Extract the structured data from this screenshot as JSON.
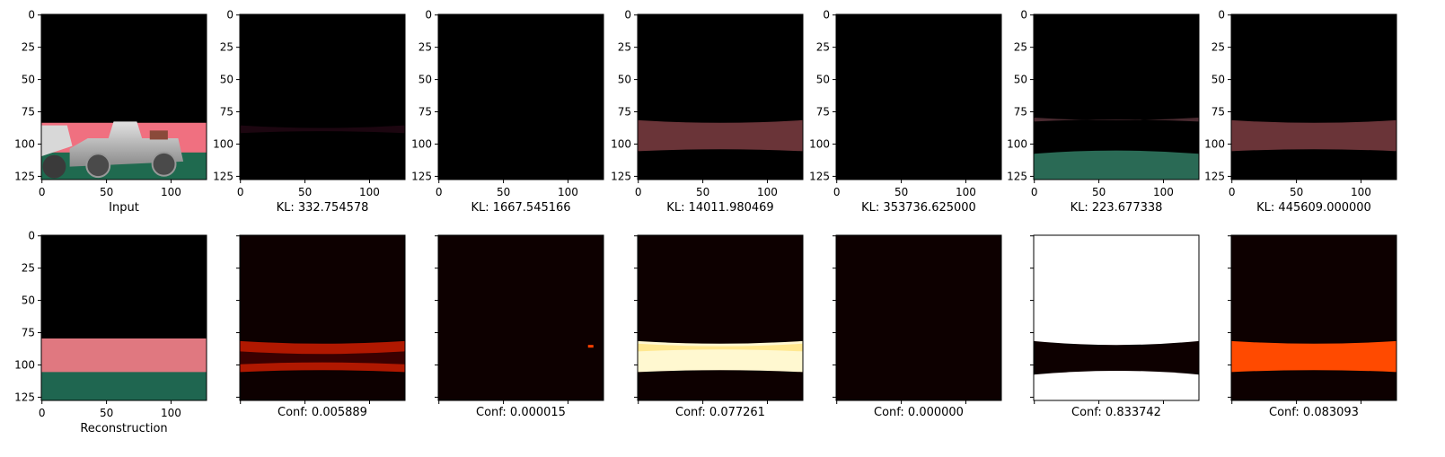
{
  "figure": {
    "x_ticks": [
      "0",
      "50",
      "100"
    ],
    "y_ticks": [
      "0",
      "25",
      "50",
      "75",
      "100",
      "125"
    ]
  },
  "chart_data": [
    {
      "type": "image",
      "row": 1,
      "col": 1,
      "caption": "Input",
      "content": "car-scene",
      "xlim": [
        0,
        128
      ],
      "ylim": [
        128,
        0
      ],
      "show_y_labels": true,
      "show_x_labels": true
    },
    {
      "type": "image",
      "row": 1,
      "col": 2,
      "caption": "KL: 332.754578",
      "content": "faint-band",
      "xlim": [
        0,
        128
      ],
      "ylim": [
        128,
        0
      ],
      "show_y_labels": true,
      "show_x_labels": true
    },
    {
      "type": "image",
      "row": 1,
      "col": 3,
      "caption": "KL: 1667.545166",
      "content": "black",
      "xlim": [
        0,
        128
      ],
      "ylim": [
        128,
        0
      ],
      "show_y_labels": true,
      "show_x_labels": true
    },
    {
      "type": "image",
      "row": 1,
      "col": 4,
      "caption": "KL: 14011.980469",
      "content": "road-band",
      "xlim": [
        0,
        128
      ],
      "ylim": [
        128,
        0
      ],
      "show_y_labels": true,
      "show_x_labels": true
    },
    {
      "type": "image",
      "row": 1,
      "col": 5,
      "caption": "KL: 353736.625000",
      "content": "black",
      "xlim": [
        0,
        128
      ],
      "ylim": [
        128,
        0
      ],
      "show_y_labels": true,
      "show_x_labels": true
    },
    {
      "type": "image",
      "row": 1,
      "col": 6,
      "caption": "KL: 223.677338",
      "content": "lane-green",
      "xlim": [
        0,
        128
      ],
      "ylim": [
        128,
        0
      ],
      "show_y_labels": true,
      "show_x_labels": true
    },
    {
      "type": "image",
      "row": 1,
      "col": 7,
      "caption": "KL: 445609.000000",
      "content": "road-band",
      "xlim": [
        0,
        128
      ],
      "ylim": [
        128,
        0
      ],
      "show_y_labels": true,
      "show_x_labels": true
    },
    {
      "type": "image",
      "row": 2,
      "col": 1,
      "caption": "Reconstruction",
      "content": "recon",
      "xlim": [
        0,
        128
      ],
      "ylim": [
        128,
        0
      ],
      "show_y_labels": true,
      "show_x_labels": true
    },
    {
      "type": "heatmap",
      "row": 2,
      "col": 2,
      "caption": "Conf: 0.005889",
      "content": "heat-red",
      "show_y_labels": false,
      "show_x_labels": false
    },
    {
      "type": "heatmap",
      "row": 2,
      "col": 3,
      "caption": "Conf: 0.000015",
      "content": "heat-black",
      "show_y_labels": false,
      "show_x_labels": false
    },
    {
      "type": "heatmap",
      "row": 2,
      "col": 4,
      "caption": "Conf: 0.077261",
      "content": "heat-band-bright",
      "show_y_labels": false,
      "show_x_labels": false
    },
    {
      "type": "heatmap",
      "row": 2,
      "col": 5,
      "caption": "Conf: 0.000000",
      "content": "heat-dark",
      "show_y_labels": false,
      "show_x_labels": false
    },
    {
      "type": "heatmap",
      "row": 2,
      "col": 6,
      "caption": "Conf: 0.833742",
      "content": "heat-white",
      "show_y_labels": false,
      "show_x_labels": false
    },
    {
      "type": "heatmap",
      "row": 2,
      "col": 7,
      "caption": "Conf: 0.083093",
      "content": "heat-orange",
      "show_y_labels": false,
      "show_x_labels": false
    }
  ]
}
